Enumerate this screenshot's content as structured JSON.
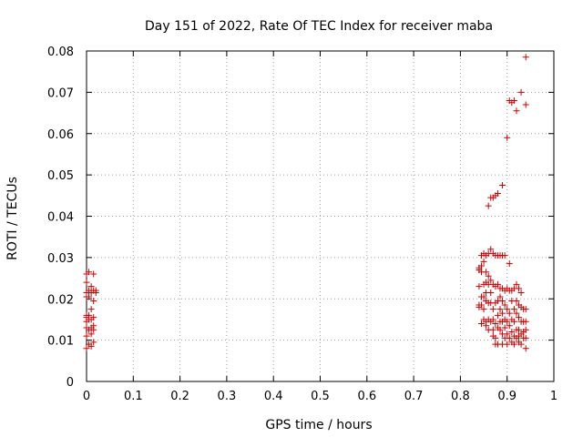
{
  "chart_data": {
    "type": "scatter",
    "title": "Day 151 of 2022, Rate Of TEC Index for receiver maba",
    "xlabel": "GPS time / hours",
    "ylabel": "ROTI / TECUs",
    "xlim": [
      0,
      1
    ],
    "ylim": [
      0,
      0.08
    ],
    "x_ticks": [
      "0",
      "0.1",
      "0.2",
      "0.3",
      "0.4",
      "0.5",
      "0.6",
      "0.7",
      "0.8",
      "0.9",
      "1"
    ],
    "y_ticks": [
      "0",
      "0.01",
      "0.02",
      "0.03",
      "0.04",
      "0.05",
      "0.06",
      "0.07",
      "0.08"
    ],
    "grid": true,
    "marker": "+",
    "marker_color": "#cc0000",
    "series": [
      {
        "points": [
          [
            0.0,
            0.026
          ],
          [
            0.0,
            0.024
          ],
          [
            0.0,
            0.0215
          ],
          [
            0.0,
            0.0205
          ],
          [
            0.0,
            0.016
          ],
          [
            0.0,
            0.0155
          ],
          [
            0.0,
            0.0145
          ],
          [
            0.0,
            0.013
          ],
          [
            0.0,
            0.011
          ],
          [
            0.0,
            0.008
          ],
          [
            0.005,
            0.0265
          ],
          [
            0.005,
            0.022
          ],
          [
            0.005,
            0.0205
          ],
          [
            0.005,
            0.016
          ],
          [
            0.005,
            0.015
          ],
          [
            0.005,
            0.0125
          ],
          [
            0.005,
            0.009
          ],
          [
            0.01,
            0.023
          ],
          [
            0.01,
            0.0215
          ],
          [
            0.01,
            0.0175
          ],
          [
            0.01,
            0.015
          ],
          [
            0.01,
            0.013
          ],
          [
            0.01,
            0.0115
          ],
          [
            0.01,
            0.0085
          ],
          [
            0.015,
            0.026
          ],
          [
            0.015,
            0.022
          ],
          [
            0.015,
            0.0195
          ],
          [
            0.015,
            0.0155
          ],
          [
            0.015,
            0.0135
          ],
          [
            0.015,
            0.0125
          ],
          [
            0.015,
            0.0095
          ],
          [
            0.02,
            0.022
          ],
          [
            0.02,
            0.0215
          ],
          [
            0.84,
            0.0275
          ],
          [
            0.84,
            0.027
          ],
          [
            0.84,
            0.023
          ],
          [
            0.84,
            0.0185
          ],
          [
            0.84,
            0.018
          ],
          [
            0.845,
            0.0305
          ],
          [
            0.845,
            0.028
          ],
          [
            0.845,
            0.0265
          ],
          [
            0.845,
            0.0205
          ],
          [
            0.845,
            0.0185
          ],
          [
            0.845,
            0.014
          ],
          [
            0.85,
            0.031
          ],
          [
            0.85,
            0.029
          ],
          [
            0.85,
            0.0235
          ],
          [
            0.85,
            0.0205
          ],
          [
            0.85,
            0.0175
          ],
          [
            0.85,
            0.015
          ],
          [
            0.855,
            0.0305
          ],
          [
            0.855,
            0.0265
          ],
          [
            0.855,
            0.024
          ],
          [
            0.855,
            0.0215
          ],
          [
            0.855,
            0.0195
          ],
          [
            0.855,
            0.0145
          ],
          [
            0.855,
            0.0135
          ],
          [
            0.86,
            0.0425
          ],
          [
            0.86,
            0.031
          ],
          [
            0.86,
            0.0255
          ],
          [
            0.86,
            0.0235
          ],
          [
            0.86,
            0.019
          ],
          [
            0.86,
            0.015
          ],
          [
            0.86,
            0.0125
          ],
          [
            0.865,
            0.0445
          ],
          [
            0.865,
            0.032
          ],
          [
            0.865,
            0.0245
          ],
          [
            0.865,
            0.0215
          ],
          [
            0.865,
            0.019
          ],
          [
            0.865,
            0.0145
          ],
          [
            0.87,
            0.0445
          ],
          [
            0.87,
            0.031
          ],
          [
            0.87,
            0.0235
          ],
          [
            0.87,
            0.0175
          ],
          [
            0.87,
            0.015
          ],
          [
            0.87,
            0.0125
          ],
          [
            0.87,
            0.011
          ],
          [
            0.875,
            0.045
          ],
          [
            0.875,
            0.0305
          ],
          [
            0.875,
            0.023
          ],
          [
            0.875,
            0.019
          ],
          [
            0.875,
            0.014
          ],
          [
            0.875,
            0.0105
          ],
          [
            0.875,
            0.009
          ],
          [
            0.88,
            0.0455
          ],
          [
            0.88,
            0.0305
          ],
          [
            0.88,
            0.0235
          ],
          [
            0.88,
            0.0195
          ],
          [
            0.88,
            0.016
          ],
          [
            0.88,
            0.013
          ],
          [
            0.88,
            0.009
          ],
          [
            0.885,
            0.0305
          ],
          [
            0.885,
            0.0225
          ],
          [
            0.885,
            0.0205
          ],
          [
            0.885,
            0.0175
          ],
          [
            0.885,
            0.0145
          ],
          [
            0.885,
            0.0125
          ],
          [
            0.89,
            0.0475
          ],
          [
            0.89,
            0.0305
          ],
          [
            0.89,
            0.0225
          ],
          [
            0.89,
            0.0195
          ],
          [
            0.89,
            0.0165
          ],
          [
            0.89,
            0.0145
          ],
          [
            0.89,
            0.0115
          ],
          [
            0.89,
            0.009
          ],
          [
            0.895,
            0.0305
          ],
          [
            0.895,
            0.022
          ],
          [
            0.895,
            0.0185
          ],
          [
            0.895,
            0.015
          ],
          [
            0.895,
            0.013
          ],
          [
            0.895,
            0.0105
          ],
          [
            0.9,
            0.059
          ],
          [
            0.9,
            0.0225
          ],
          [
            0.9,
            0.0175
          ],
          [
            0.9,
            0.0145
          ],
          [
            0.9,
            0.0115
          ],
          [
            0.9,
            0.009
          ],
          [
            0.905,
            0.068
          ],
          [
            0.905,
            0.0285
          ],
          [
            0.905,
            0.022
          ],
          [
            0.905,
            0.0165
          ],
          [
            0.905,
            0.0135
          ],
          [
            0.905,
            0.0105
          ],
          [
            0.91,
            0.0675
          ],
          [
            0.91,
            0.022
          ],
          [
            0.91,
            0.0195
          ],
          [
            0.91,
            0.015
          ],
          [
            0.91,
            0.012
          ],
          [
            0.91,
            0.0095
          ],
          [
            0.915,
            0.068
          ],
          [
            0.915,
            0.0225
          ],
          [
            0.915,
            0.0175
          ],
          [
            0.915,
            0.0145
          ],
          [
            0.915,
            0.011
          ],
          [
            0.915,
            0.009
          ],
          [
            0.92,
            0.0655
          ],
          [
            0.92,
            0.0235
          ],
          [
            0.92,
            0.0195
          ],
          [
            0.92,
            0.0165
          ],
          [
            0.92,
            0.0125
          ],
          [
            0.92,
            0.0105
          ],
          [
            0.925,
            0.0225
          ],
          [
            0.925,
            0.0185
          ],
          [
            0.925,
            0.0155
          ],
          [
            0.925,
            0.0125
          ],
          [
            0.925,
            0.011
          ],
          [
            0.925,
            0.0095
          ],
          [
            0.93,
            0.07
          ],
          [
            0.93,
            0.0215
          ],
          [
            0.93,
            0.018
          ],
          [
            0.93,
            0.0145
          ],
          [
            0.93,
            0.0115
          ],
          [
            0.93,
            0.009
          ],
          [
            0.935,
            0.0175
          ],
          [
            0.935,
            0.0145
          ],
          [
            0.935,
            0.012
          ],
          [
            0.935,
            0.0105
          ],
          [
            0.94,
            0.0785
          ],
          [
            0.94,
            0.067
          ],
          [
            0.94,
            0.0175
          ],
          [
            0.94,
            0.0145
          ],
          [
            0.94,
            0.0125
          ],
          [
            0.94,
            0.0105
          ],
          [
            0.94,
            0.008
          ]
        ]
      }
    ]
  }
}
